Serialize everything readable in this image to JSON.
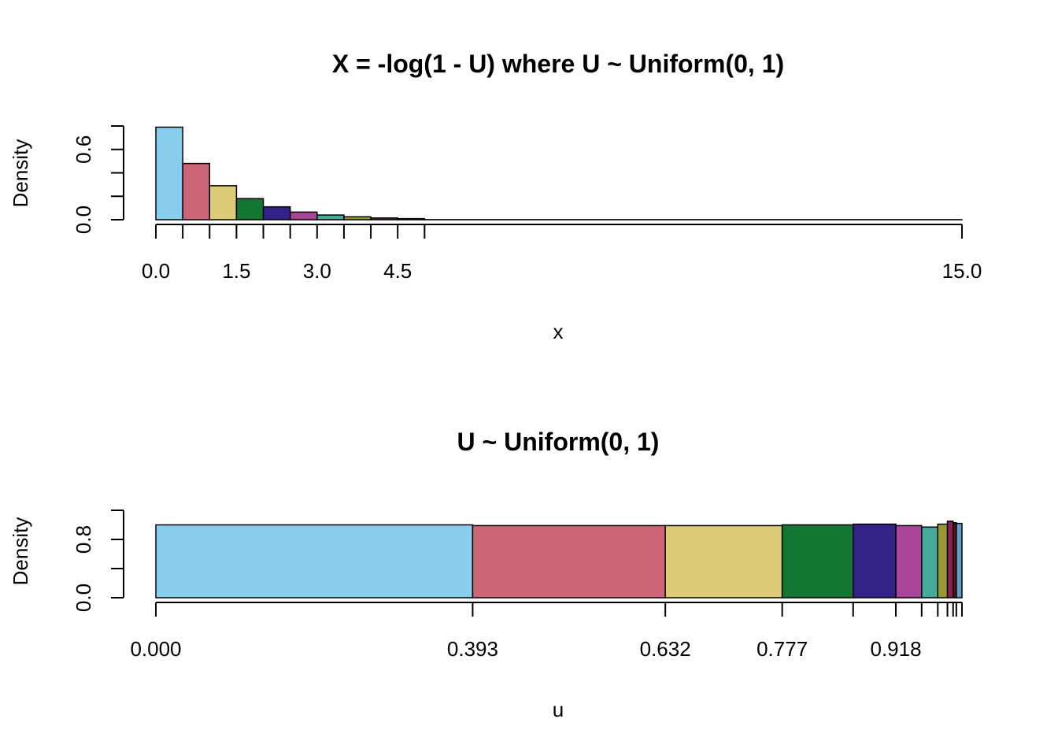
{
  "chart_data": [
    {
      "type": "bar",
      "title": "X = -log(1 - U) where U ~ Uniform(0, 1)",
      "xlabel": "x",
      "ylabel": "Density",
      "xlim": [
        0,
        15
      ],
      "ylim": [
        0,
        0.8
      ],
      "x_tick_labels": [
        "0.0",
        "1.5",
        "3.0",
        "4.5",
        "15.0"
      ],
      "x_tick_label_values": [
        0,
        1.5,
        3.0,
        4.5,
        15.0
      ],
      "x_minor_ticks": [
        0,
        0.5,
        1.0,
        1.5,
        2.0,
        2.5,
        3.0,
        3.5,
        4.0,
        4.5,
        5.0,
        15.0
      ],
      "y_tick_labels": [
        "0.0",
        "0.6"
      ],
      "y_tick_label_values": [
        0.0,
        0.6
      ],
      "y_minor_ticks": [
        0.0,
        0.2,
        0.4,
        0.6,
        0.8
      ],
      "bins": [
        {
          "from": 0.0,
          "to": 0.5,
          "value": 0.79
        },
        {
          "from": 0.5,
          "to": 1.0,
          "value": 0.48
        },
        {
          "from": 1.0,
          "to": 1.5,
          "value": 0.29
        },
        {
          "from": 1.5,
          "to": 2.0,
          "value": 0.18
        },
        {
          "from": 2.0,
          "to": 2.5,
          "value": 0.11
        },
        {
          "from": 2.5,
          "to": 3.0,
          "value": 0.065
        },
        {
          "from": 3.0,
          "to": 3.5,
          "value": 0.04
        },
        {
          "from": 3.5,
          "to": 4.0,
          "value": 0.025
        },
        {
          "from": 4.0,
          "to": 4.5,
          "value": 0.015
        },
        {
          "from": 4.5,
          "to": 5.0,
          "value": 0.009
        },
        {
          "from": 5.0,
          "to": 15.0,
          "value": 0.0007
        }
      ],
      "colors": [
        "#88CCEE",
        "#CC6677",
        "#DDCC77",
        "#117733",
        "#332288",
        "#AA4499",
        "#44AA99",
        "#999933",
        "#882255",
        "#661100",
        "#6699CC"
      ]
    },
    {
      "type": "bar",
      "title": "U ~ Uniform(0, 1)",
      "xlabel": "u",
      "ylabel": "Density",
      "xlim": [
        0,
        1
      ],
      "ylim": [
        0,
        1.2
      ],
      "x_tick_labels": [
        "0.000",
        "0.393",
        "0.632",
        "0.777",
        "0.918"
      ],
      "x_tick_label_values": [
        0.0,
        0.393,
        0.632,
        0.777,
        0.918
      ],
      "x_minor_ticks": [
        0.0,
        0.393,
        0.632,
        0.777,
        0.865,
        0.918,
        0.95,
        0.97,
        0.982,
        0.989,
        0.993,
        1.0
      ],
      "y_tick_labels": [
        "0.0",
        "0.8"
      ],
      "y_tick_label_values": [
        0.0,
        0.8
      ],
      "y_minor_ticks": [
        0.0,
        0.4,
        0.8,
        1.2
      ],
      "bins": [
        {
          "from": 0.0,
          "to": 0.393,
          "value": 1.0
        },
        {
          "from": 0.393,
          "to": 0.632,
          "value": 0.99
        },
        {
          "from": 0.632,
          "to": 0.777,
          "value": 0.99
        },
        {
          "from": 0.777,
          "to": 0.865,
          "value": 1.0
        },
        {
          "from": 0.865,
          "to": 0.918,
          "value": 1.01
        },
        {
          "from": 0.918,
          "to": 0.95,
          "value": 0.99
        },
        {
          "from": 0.95,
          "to": 0.97,
          "value": 0.97
        },
        {
          "from": 0.97,
          "to": 0.982,
          "value": 1.01
        },
        {
          "from": 0.982,
          "to": 0.989,
          "value": 1.05
        },
        {
          "from": 0.989,
          "to": 0.993,
          "value": 1.03
        },
        {
          "from": 0.993,
          "to": 1.0,
          "value": 1.02
        }
      ],
      "colors": [
        "#88CCEE",
        "#CC6677",
        "#DDCC77",
        "#117733",
        "#332288",
        "#AA4499",
        "#44AA99",
        "#999933",
        "#882255",
        "#661100",
        "#6699CC"
      ]
    }
  ]
}
